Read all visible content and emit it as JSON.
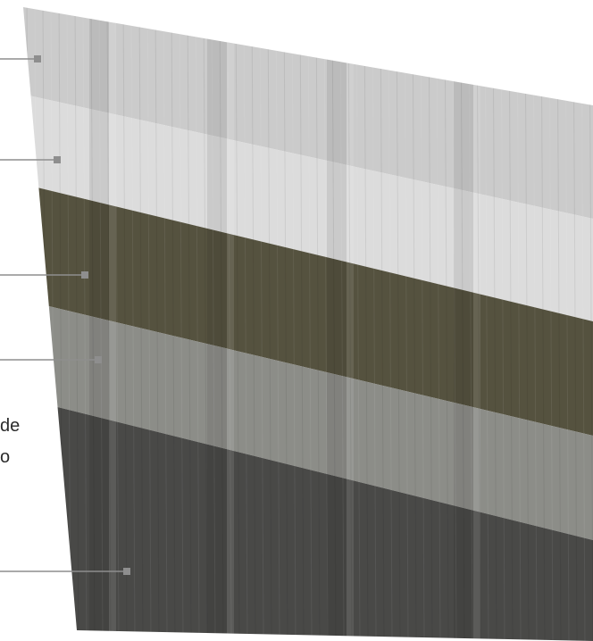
{
  "caption_fragments": [
    {
      "text": "de"
    },
    {
      "text": "o"
    }
  ],
  "layers": [
    {
      "name": "top-light-layer",
      "color": "#cbcbcb"
    },
    {
      "name": "second-light-layer",
      "color": "#dcdcdc"
    },
    {
      "name": "dark-olive-layer",
      "color": "#55523f"
    },
    {
      "name": "grey-layer",
      "color": "#8c8d88"
    },
    {
      "name": "dark-base-layer",
      "color": "#494947"
    }
  ],
  "callout_color": "#8e8e8e"
}
